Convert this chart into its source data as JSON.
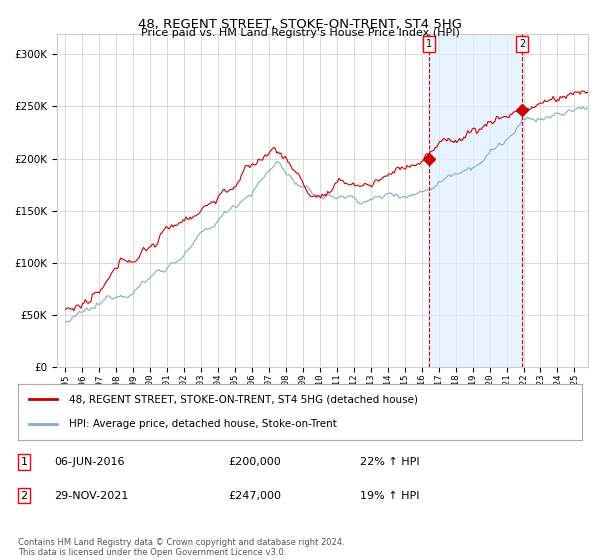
{
  "title": "48, REGENT STREET, STOKE-ON-TRENT, ST4 5HG",
  "subtitle": "Price paid vs. HM Land Registry's House Price Index (HPI)",
  "legend_label_red": "48, REGENT STREET, STOKE-ON-TRENT, ST4 5HG (detached house)",
  "legend_label_blue": "HPI: Average price, detached house, Stoke-on-Trent",
  "annotation1_label": "1",
  "annotation1_date": "06-JUN-2016",
  "annotation1_price": "£200,000",
  "annotation1_hpi": "22% ↑ HPI",
  "annotation1_year": 2016.43,
  "annotation1_value": 200000,
  "annotation2_label": "2",
  "annotation2_date": "29-NOV-2021",
  "annotation2_price": "£247,000",
  "annotation2_hpi": "19% ↑ HPI",
  "annotation2_year": 2021.91,
  "annotation2_value": 247000,
  "footer": "Contains HM Land Registry data © Crown copyright and database right 2024.\nThis data is licensed under the Open Government Licence v3.0.",
  "ylim": [
    0,
    320000
  ],
  "yticks": [
    0,
    50000,
    100000,
    150000,
    200000,
    250000,
    300000
  ],
  "red_color": "#cc0000",
  "blue_color": "#88aacc",
  "shade_color": "#ddeeff",
  "background_color": "#ffffff",
  "grid_color": "#cccccc"
}
